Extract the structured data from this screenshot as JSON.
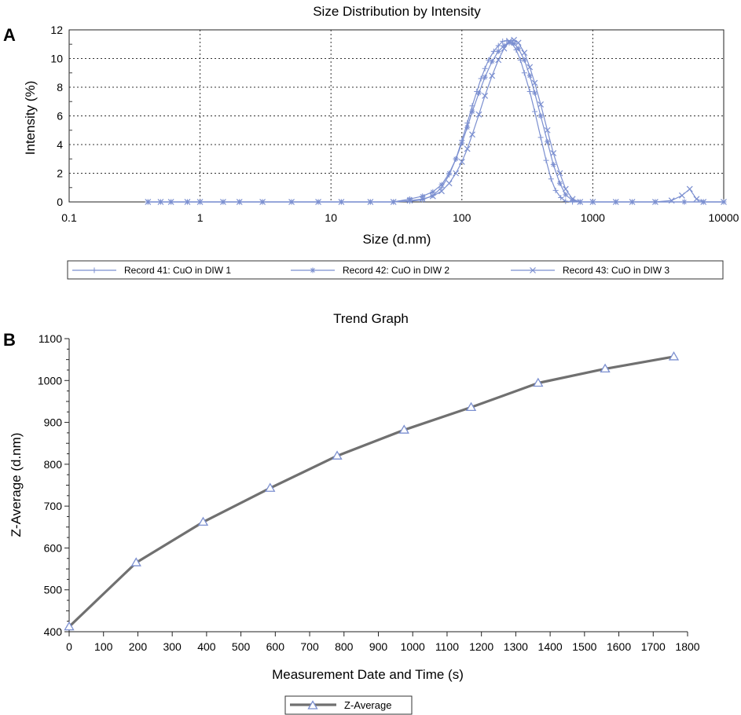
{
  "panels": {
    "a": {
      "letter": "A",
      "title": "Size Distribution by Intensity",
      "xlabel": "Size (d.nm)",
      "ylabel": "Intensity (%)"
    },
    "b": {
      "letter": "B",
      "title": "Trend Graph",
      "xlabel": "Measurement Date and Time (s)",
      "ylabel": "Z-Average (d.nm)"
    }
  },
  "chart_data": [
    {
      "type": "line",
      "title": "Size Distribution by Intensity",
      "xlabel": "Size (d.nm)",
      "ylabel": "Intensity (%)",
      "xscale": "log",
      "xlim": [
        0.1,
        10000
      ],
      "ylim": [
        0,
        12
      ],
      "x_ticks": [
        "0.1",
        "1",
        "10",
        "100",
        "1000",
        "10000"
      ],
      "y_ticks": [
        "0",
        "2",
        "4",
        "6",
        "8",
        "10",
        "12"
      ],
      "grid": true,
      "legend_position": "bottom",
      "color": "#7b8fd0",
      "series": [
        {
          "name": "Record 41: CuO in DIW 1",
          "marker": "plus",
          "points": [
            [
              0.4,
              0
            ],
            [
              0.5,
              0
            ],
            [
              0.6,
              0
            ],
            [
              0.8,
              0
            ],
            [
              1,
              0
            ],
            [
              1.5,
              0
            ],
            [
              2,
              0
            ],
            [
              3,
              0
            ],
            [
              5,
              0
            ],
            [
              8,
              0
            ],
            [
              12,
              0
            ],
            [
              20,
              0
            ],
            [
              30,
              0
            ],
            [
              40,
              0.05
            ],
            [
              50,
              0.15
            ],
            [
              60,
              0.45
            ],
            [
              70,
              1.0
            ],
            [
              80,
              1.9
            ],
            [
              90,
              3.0
            ],
            [
              100,
              4.3
            ],
            [
              110,
              5.5
            ],
            [
              120,
              6.7
            ],
            [
              130,
              7.7
            ],
            [
              140,
              8.6
            ],
            [
              150,
              9.3
            ],
            [
              160,
              9.9
            ],
            [
              175,
              10.5
            ],
            [
              190,
              10.9
            ],
            [
              205,
              11.2
            ],
            [
              220,
              11.25
            ],
            [
              240,
              11.1
            ],
            [
              260,
              10.6
            ],
            [
              280,
              9.9
            ],
            [
              300,
              9.0
            ],
            [
              330,
              7.7
            ],
            [
              360,
              6.3
            ],
            [
              400,
              4.5
            ],
            [
              440,
              2.9
            ],
            [
              480,
              1.6
            ],
            [
              520,
              0.8
            ],
            [
              570,
              0.3
            ],
            [
              620,
              0.05
            ],
            [
              700,
              0
            ],
            [
              800,
              0
            ],
            [
              1000,
              0
            ],
            [
              1500,
              0
            ],
            [
              2000,
              0
            ],
            [
              3000,
              0
            ],
            [
              5000,
              0
            ],
            [
              7000,
              0
            ],
            [
              10000,
              0
            ]
          ]
        },
        {
          "name": "Record 42: CuO in DIW 2",
          "marker": "star",
          "points": [
            [
              0.4,
              0
            ],
            [
              0.5,
              0
            ],
            [
              0.6,
              0
            ],
            [
              0.8,
              0
            ],
            [
              1,
              0
            ],
            [
              1.5,
              0
            ],
            [
              2,
              0
            ],
            [
              3,
              0
            ],
            [
              5,
              0
            ],
            [
              8,
              0
            ],
            [
              12,
              0
            ],
            [
              20,
              0
            ],
            [
              30,
              0
            ],
            [
              40,
              0.2
            ],
            [
              50,
              0.4
            ],
            [
              60,
              0.7
            ],
            [
              70,
              1.2
            ],
            [
              80,
              2.0
            ],
            [
              90,
              3.0
            ],
            [
              100,
              4.1
            ],
            [
              110,
              5.2
            ],
            [
              120,
              6.3
            ],
            [
              135,
              7.6
            ],
            [
              150,
              8.7
            ],
            [
              170,
              9.8
            ],
            [
              190,
              10.5
            ],
            [
              210,
              10.9
            ],
            [
              230,
              11.1
            ],
            [
              250,
              11.05
            ],
            [
              270,
              10.7
            ],
            [
              300,
              9.9
            ],
            [
              330,
              8.8
            ],
            [
              360,
              7.6
            ],
            [
              400,
              6.0
            ],
            [
              450,
              4.2
            ],
            [
              500,
              2.6
            ],
            [
              560,
              1.3
            ],
            [
              620,
              0.5
            ],
            [
              700,
              0.1
            ],
            [
              800,
              0
            ],
            [
              1000,
              0
            ],
            [
              1500,
              0
            ],
            [
              2000,
              0
            ],
            [
              3000,
              0
            ],
            [
              5000,
              0
            ],
            [
              7000,
              0
            ],
            [
              10000,
              0
            ]
          ]
        },
        {
          "name": "Record 43: CuO in DIW 3",
          "marker": "x",
          "points": [
            [
              0.4,
              0
            ],
            [
              0.5,
              0
            ],
            [
              0.6,
              0
            ],
            [
              0.8,
              0
            ],
            [
              1,
              0
            ],
            [
              1.5,
              0
            ],
            [
              2,
              0
            ],
            [
              3,
              0
            ],
            [
              5,
              0
            ],
            [
              8,
              0
            ],
            [
              12,
              0
            ],
            [
              20,
              0
            ],
            [
              30,
              0
            ],
            [
              40,
              0.1
            ],
            [
              50,
              0.2
            ],
            [
              60,
              0.4
            ],
            [
              70,
              0.75
            ],
            [
              80,
              1.3
            ],
            [
              90,
              2.0
            ],
            [
              100,
              2.8
            ],
            [
              110,
              3.7
            ],
            [
              120,
              4.7
            ],
            [
              135,
              6.1
            ],
            [
              150,
              7.4
            ],
            [
              170,
              8.8
            ],
            [
              190,
              9.9
            ],
            [
              210,
              10.7
            ],
            [
              230,
              11.2
            ],
            [
              250,
              11.3
            ],
            [
              270,
              11.1
            ],
            [
              300,
              10.4
            ],
            [
              330,
              9.4
            ],
            [
              360,
              8.3
            ],
            [
              400,
              6.8
            ],
            [
              450,
              5.0
            ],
            [
              500,
              3.4
            ],
            [
              560,
              2.0
            ],
            [
              620,
              0.9
            ],
            [
              700,
              0.2
            ],
            [
              800,
              0
            ],
            [
              1000,
              0
            ],
            [
              1500,
              0
            ],
            [
              2000,
              0
            ],
            [
              3000,
              0
            ],
            [
              4000,
              0.1
            ],
            [
              4800,
              0.45
            ],
            [
              5500,
              0.9
            ],
            [
              6200,
              0.2
            ],
            [
              7000,
              0
            ],
            [
              10000,
              0
            ]
          ]
        }
      ]
    },
    {
      "type": "line",
      "title": "Trend Graph",
      "xlabel": "Measurement Date and Time (s)",
      "ylabel": "Z-Average (d.nm)",
      "xlim": [
        0,
        1800
      ],
      "ylim": [
        400,
        1100
      ],
      "x_ticks": [
        "0",
        "100",
        "200",
        "300",
        "400",
        "500",
        "600",
        "700",
        "800",
        "900",
        "1000",
        "1100",
        "1200",
        "1300",
        "1400",
        "1500",
        "1600",
        "1700",
        "1800"
      ],
      "y_ticks": [
        "400",
        "500",
        "600",
        "700",
        "800",
        "900",
        "1000",
        "1100"
      ],
      "grid": false,
      "legend_position": "bottom",
      "line_color": "#707070",
      "marker_color": "#7b8fd0",
      "series": [
        {
          "name": "Z-Average",
          "marker": "triangle",
          "x": [
            0,
            195,
            390,
            585,
            780,
            975,
            1170,
            1365,
            1560,
            1760
          ],
          "y": [
            412,
            565,
            662,
            743,
            820,
            882,
            936,
            994,
            1028,
            1057
          ]
        }
      ]
    }
  ]
}
